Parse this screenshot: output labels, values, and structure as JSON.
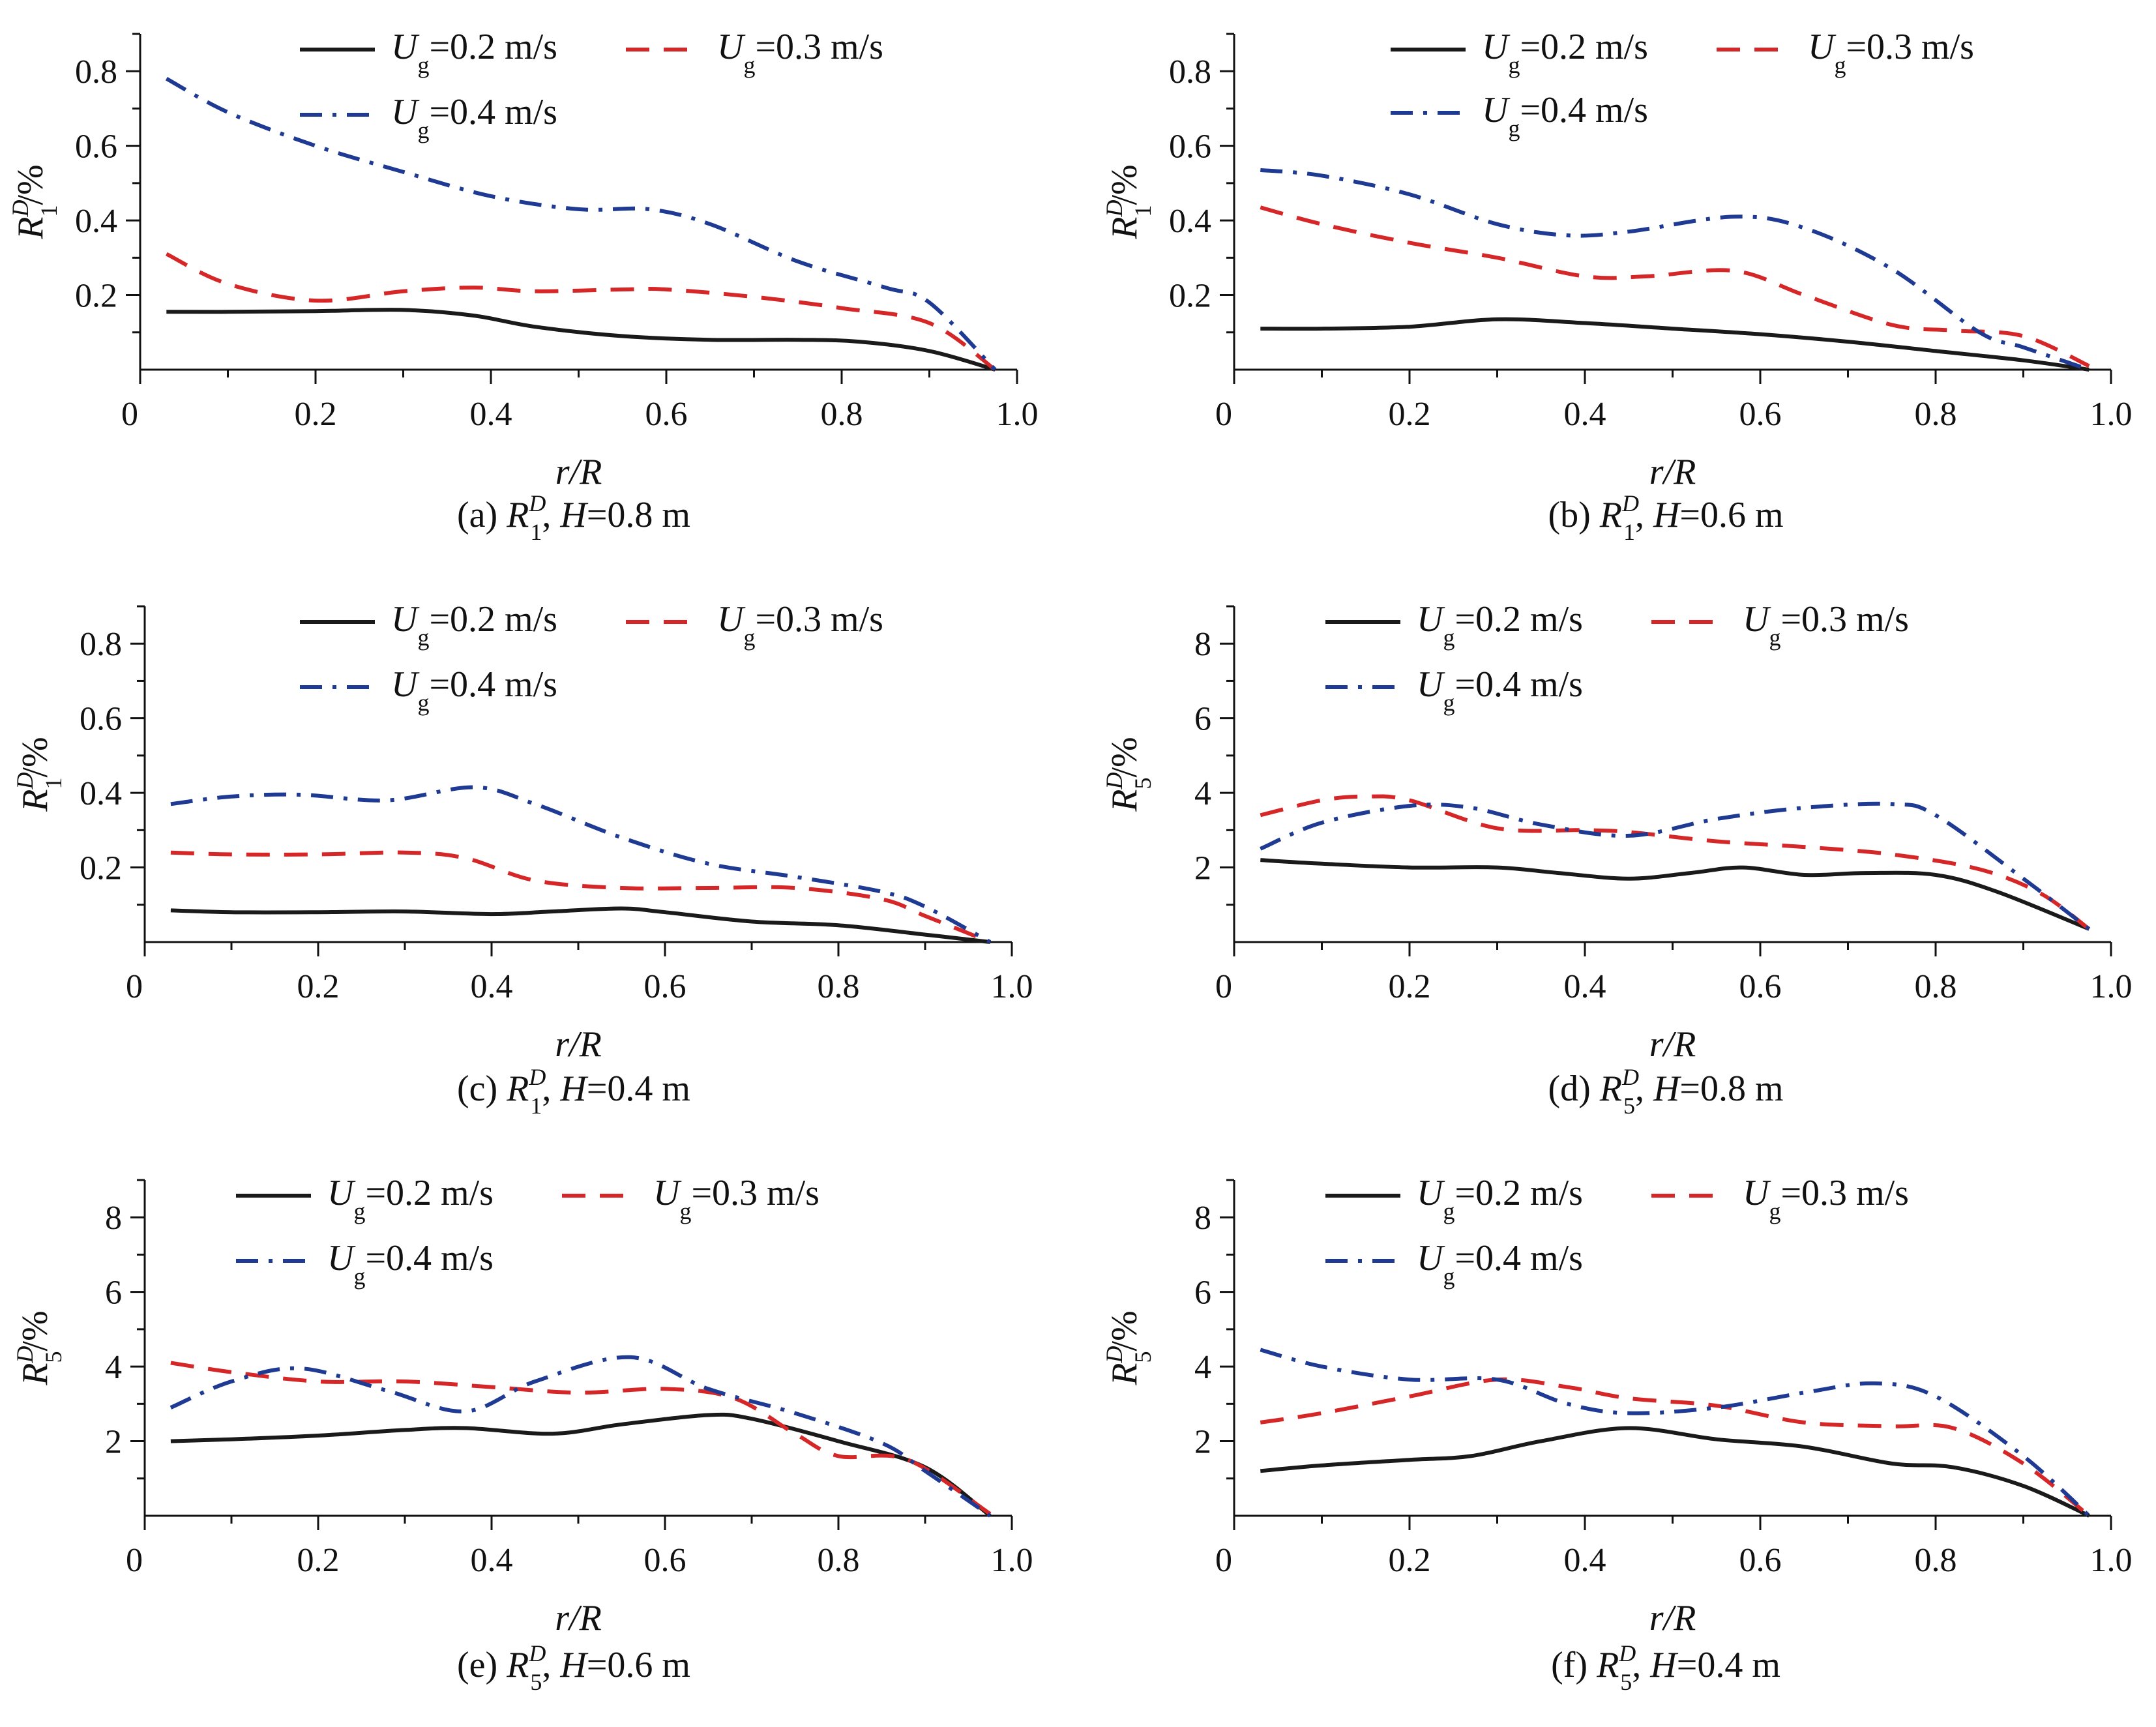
{
  "figure": {
    "x_label": "r/R",
    "x_ticks": [
      "0",
      "0.2",
      "0.4",
      "0.6",
      "0.8",
      "1.0"
    ],
    "legend": {
      "velocity_symbol": "U",
      "velocity_sub": "g",
      "unit": "m/s"
    }
  },
  "chart_data": [
    {
      "type": "line",
      "caption": {
        "tag": "(a)",
        "symbol": "R",
        "sup": "D",
        "sub": "1",
        "height": "H=0.8 m"
      },
      "ylabel": {
        "symbol": "R",
        "sup": "D",
        "sub": "1",
        "unit": "/%"
      },
      "xlim": [
        0,
        1.0
      ],
      "ylim": [
        0,
        0.9
      ],
      "y_ticks": [
        0.2,
        0.4,
        0.6,
        0.8
      ],
      "y_tick_labels": [
        "0.2",
        "0.4",
        "0.6",
        "0.8"
      ],
      "series": [
        {
          "name": "=0.2 m/s",
          "style": "solid",
          "color": "#1a1a1a",
          "x": [
            0.03,
            0.1,
            0.2,
            0.3,
            0.38,
            0.45,
            0.55,
            0.65,
            0.75,
            0.82,
            0.9,
            0.975
          ],
          "y": [
            0.155,
            0.155,
            0.157,
            0.16,
            0.145,
            0.115,
            0.09,
            0.08,
            0.08,
            0.075,
            0.05,
            0.0
          ]
        },
        {
          "name": "=0.3 m/s",
          "style": "dash",
          "color": "#d62728",
          "x": [
            0.03,
            0.1,
            0.2,
            0.3,
            0.38,
            0.45,
            0.55,
            0.6,
            0.7,
            0.8,
            0.9,
            0.975
          ],
          "y": [
            0.31,
            0.23,
            0.185,
            0.21,
            0.22,
            0.21,
            0.215,
            0.215,
            0.195,
            0.165,
            0.125,
            0.0
          ]
        },
        {
          "name": "=0.4 m/s",
          "style": "dashdot",
          "color": "#1f3a93",
          "x": [
            0.03,
            0.1,
            0.2,
            0.3,
            0.4,
            0.5,
            0.58,
            0.65,
            0.75,
            0.85,
            0.9,
            0.975
          ],
          "y": [
            0.78,
            0.69,
            0.6,
            0.53,
            0.465,
            0.43,
            0.43,
            0.39,
            0.29,
            0.22,
            0.18,
            0.0
          ]
        }
      ],
      "legend_position": "top"
    },
    {
      "type": "line",
      "caption": {
        "tag": "(b)",
        "symbol": "R",
        "sup": "D",
        "sub": "1",
        "height": "H=0.6 m"
      },
      "ylabel": {
        "symbol": "R",
        "sup": "D",
        "sub": "1",
        "unit": "/%"
      },
      "xlim": [
        0,
        1.0
      ],
      "ylim": [
        0,
        0.9
      ],
      "y_ticks": [
        0.2,
        0.4,
        0.6,
        0.8
      ],
      "y_tick_labels": [
        "0.2",
        "0.4",
        "0.6",
        "0.8"
      ],
      "series": [
        {
          "name": "=0.2 m/s",
          "style": "solid",
          "color": "#1a1a1a",
          "x": [
            0.03,
            0.1,
            0.2,
            0.3,
            0.4,
            0.5,
            0.6,
            0.7,
            0.8,
            0.9,
            0.975
          ],
          "y": [
            0.11,
            0.11,
            0.115,
            0.135,
            0.125,
            0.11,
            0.095,
            0.075,
            0.05,
            0.025,
            0.0
          ]
        },
        {
          "name": "=0.3 m/s",
          "style": "dash",
          "color": "#d62728",
          "x": [
            0.03,
            0.1,
            0.2,
            0.3,
            0.4,
            0.47,
            0.57,
            0.65,
            0.75,
            0.82,
            0.9,
            0.975
          ],
          "y": [
            0.435,
            0.39,
            0.34,
            0.3,
            0.25,
            0.25,
            0.265,
            0.2,
            0.12,
            0.105,
            0.09,
            0.01
          ]
        },
        {
          "name": "=0.4 m/s",
          "style": "dashdot",
          "color": "#1f3a93",
          "x": [
            0.03,
            0.1,
            0.2,
            0.3,
            0.38,
            0.45,
            0.57,
            0.65,
            0.75,
            0.85,
            0.9,
            0.975
          ],
          "y": [
            0.535,
            0.52,
            0.47,
            0.39,
            0.36,
            0.37,
            0.41,
            0.38,
            0.27,
            0.1,
            0.06,
            0.0
          ]
        }
      ],
      "legend_position": "top"
    },
    {
      "type": "line",
      "caption": {
        "tag": "(c)",
        "symbol": "R",
        "sup": "D",
        "sub": "1",
        "height": "H=0.4 m"
      },
      "ylabel": {
        "symbol": "R",
        "sup": "D",
        "sub": "1",
        "unit": "/%"
      },
      "xlim": [
        0,
        1.0
      ],
      "ylim": [
        0,
        0.9
      ],
      "y_ticks": [
        0.2,
        0.4,
        0.6,
        0.8
      ],
      "y_tick_labels": [
        "0.2",
        "0.4",
        "0.6",
        "0.8"
      ],
      "series": [
        {
          "name": "=0.2 m/s",
          "style": "solid",
          "color": "#1a1a1a",
          "x": [
            0.03,
            0.1,
            0.2,
            0.3,
            0.4,
            0.47,
            0.55,
            0.6,
            0.7,
            0.8,
            0.9,
            0.975
          ],
          "y": [
            0.085,
            0.08,
            0.08,
            0.082,
            0.075,
            0.082,
            0.09,
            0.08,
            0.055,
            0.045,
            0.02,
            0.0
          ]
        },
        {
          "name": "=0.3 m/s",
          "style": "dash",
          "color": "#d62728",
          "x": [
            0.03,
            0.1,
            0.2,
            0.3,
            0.37,
            0.45,
            0.55,
            0.65,
            0.75,
            0.85,
            0.9,
            0.975
          ],
          "y": [
            0.24,
            0.235,
            0.235,
            0.24,
            0.225,
            0.165,
            0.145,
            0.145,
            0.145,
            0.115,
            0.07,
            0.0
          ]
        },
        {
          "name": "=0.4 m/s",
          "style": "dashdot",
          "color": "#1f3a93",
          "x": [
            0.03,
            0.1,
            0.18,
            0.28,
            0.38,
            0.45,
            0.55,
            0.65,
            0.75,
            0.85,
            0.9,
            0.975
          ],
          "y": [
            0.37,
            0.39,
            0.395,
            0.38,
            0.415,
            0.37,
            0.28,
            0.21,
            0.175,
            0.135,
            0.095,
            0.0
          ]
        }
      ],
      "legend_position": "top"
    },
    {
      "type": "line",
      "caption": {
        "tag": "(d)",
        "symbol": "R",
        "sup": "D",
        "sub": "5",
        "height": "H=0.8 m"
      },
      "ylabel": {
        "symbol": "R",
        "sup": "D",
        "sub": "5",
        "unit": "/%"
      },
      "xlim": [
        0,
        1.0
      ],
      "ylim": [
        0,
        9
      ],
      "y_ticks": [
        2,
        4,
        6,
        8
      ],
      "y_tick_labels": [
        "2",
        "4",
        "6",
        "8"
      ],
      "series": [
        {
          "name": "=0.2 m/s",
          "style": "solid",
          "color": "#1a1a1a",
          "x": [
            0.03,
            0.1,
            0.2,
            0.3,
            0.37,
            0.45,
            0.52,
            0.58,
            0.65,
            0.72,
            0.8,
            0.87,
            0.975
          ],
          "y": [
            2.2,
            2.1,
            2.0,
            2.0,
            1.85,
            1.7,
            1.85,
            2.0,
            1.8,
            1.85,
            1.8,
            1.35,
            0.35
          ]
        },
        {
          "name": "=0.3 m/s",
          "style": "dash",
          "color": "#d62728",
          "x": [
            0.03,
            0.1,
            0.15,
            0.2,
            0.3,
            0.4,
            0.45,
            0.55,
            0.65,
            0.75,
            0.85,
            0.92,
            0.975
          ],
          "y": [
            3.4,
            3.8,
            3.9,
            3.8,
            3.05,
            3.0,
            2.95,
            2.7,
            2.55,
            2.35,
            1.95,
            1.3,
            0.35
          ]
        },
        {
          "name": "=0.4 m/s",
          "style": "dashdot",
          "color": "#1f3a93",
          "x": [
            0.03,
            0.1,
            0.2,
            0.27,
            0.35,
            0.45,
            0.55,
            0.65,
            0.75,
            0.8,
            0.9,
            0.975
          ],
          "y": [
            2.5,
            3.2,
            3.65,
            3.6,
            3.15,
            2.85,
            3.3,
            3.6,
            3.7,
            3.4,
            1.7,
            0.35
          ]
        }
      ],
      "legend_position": "top"
    },
    {
      "type": "line",
      "caption": {
        "tag": "(e)",
        "symbol": "R",
        "sup": "D",
        "sub": "5",
        "height": "H=0.6 m"
      },
      "ylabel": {
        "symbol": "R",
        "sup": "D",
        "sub": "5",
        "unit": "/%"
      },
      "xlim": [
        0,
        1.0
      ],
      "ylim": [
        0,
        9
      ],
      "y_ticks": [
        2,
        4,
        6,
        8
      ],
      "y_tick_labels": [
        "2",
        "4",
        "6",
        "8"
      ],
      "series": [
        {
          "name": "=0.2 m/s",
          "style": "solid",
          "color": "#1a1a1a",
          "x": [
            0.03,
            0.1,
            0.2,
            0.3,
            0.37,
            0.47,
            0.55,
            0.65,
            0.7,
            0.8,
            0.9,
            0.975
          ],
          "y": [
            2.0,
            2.05,
            2.15,
            2.3,
            2.35,
            2.2,
            2.45,
            2.7,
            2.6,
            2.0,
            1.3,
            0.0
          ]
        },
        {
          "name": "=0.3 m/s",
          "style": "dash",
          "color": "#d62728",
          "x": [
            0.03,
            0.1,
            0.2,
            0.3,
            0.4,
            0.5,
            0.6,
            0.68,
            0.75,
            0.8,
            0.88,
            0.975
          ],
          "y": [
            4.1,
            3.85,
            3.6,
            3.6,
            3.45,
            3.3,
            3.4,
            3.15,
            2.2,
            1.6,
            1.5,
            0.05
          ]
        },
        {
          "name": "=0.4 m/s",
          "style": "dashdot",
          "color": "#1f3a93",
          "x": [
            0.03,
            0.1,
            0.18,
            0.28,
            0.37,
            0.45,
            0.56,
            0.65,
            0.75,
            0.85,
            0.9,
            0.975
          ],
          "y": [
            2.9,
            3.6,
            3.95,
            3.35,
            2.8,
            3.6,
            4.25,
            3.4,
            2.75,
            1.95,
            1.2,
            0.0
          ]
        }
      ],
      "legend_position": "top"
    },
    {
      "type": "line",
      "caption": {
        "tag": "(f)",
        "symbol": "R",
        "sup": "D",
        "sub": "5",
        "height": "H=0.4 m"
      },
      "ylabel": {
        "symbol": "R",
        "sup": "D",
        "sub": "5",
        "unit": "/%"
      },
      "xlim": [
        0,
        1.0
      ],
      "ylim": [
        0,
        9
      ],
      "y_ticks": [
        2,
        4,
        6,
        8
      ],
      "y_tick_labels": [
        "2",
        "4",
        "6",
        "8"
      ],
      "series": [
        {
          "name": "=0.2 m/s",
          "style": "solid",
          "color": "#1a1a1a",
          "x": [
            0.03,
            0.1,
            0.2,
            0.27,
            0.35,
            0.45,
            0.55,
            0.65,
            0.75,
            0.82,
            0.9,
            0.975
          ],
          "y": [
            1.2,
            1.35,
            1.5,
            1.6,
            2.0,
            2.35,
            2.05,
            1.85,
            1.4,
            1.3,
            0.8,
            0.0
          ]
        },
        {
          "name": "=0.3 m/s",
          "style": "dash",
          "color": "#d62728",
          "x": [
            0.03,
            0.1,
            0.2,
            0.3,
            0.38,
            0.45,
            0.55,
            0.65,
            0.75,
            0.82,
            0.9,
            0.975
          ],
          "y": [
            2.5,
            2.75,
            3.2,
            3.65,
            3.45,
            3.15,
            2.95,
            2.5,
            2.4,
            2.35,
            1.4,
            0.0
          ]
        },
        {
          "name": "=0.4 m/s",
          "style": "dashdot",
          "color": "#1f3a93",
          "x": [
            0.03,
            0.1,
            0.2,
            0.3,
            0.38,
            0.45,
            0.55,
            0.65,
            0.73,
            0.8,
            0.9,
            0.975
          ],
          "y": [
            4.45,
            4.0,
            3.65,
            3.65,
            3.0,
            2.75,
            2.9,
            3.3,
            3.55,
            3.2,
            1.6,
            0.0
          ]
        }
      ],
      "legend_position": "top"
    }
  ]
}
